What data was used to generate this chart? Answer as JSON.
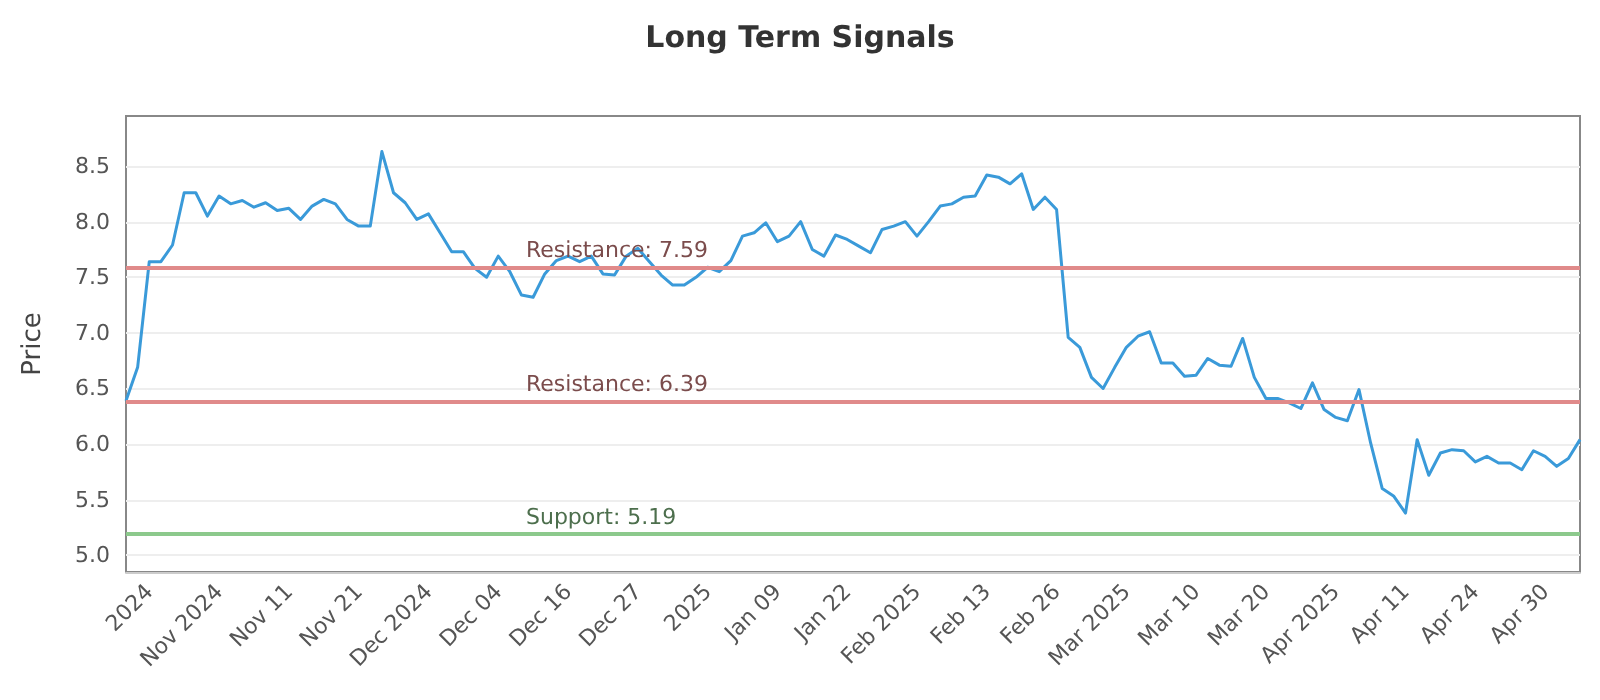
{
  "chart_data": {
    "type": "line",
    "title": "Long Term Signals",
    "ylabel": "Price",
    "categories": [
      null,
      null,
      "2024",
      null,
      null,
      null,
      null,
      null,
      "Nov 2024",
      null,
      null,
      null,
      null,
      null,
      "Nov 11",
      null,
      null,
      null,
      null,
      null,
      "Nov 21",
      null,
      null,
      null,
      null,
      null,
      "Dec 2024",
      null,
      null,
      null,
      null,
      null,
      "Dec 04",
      null,
      null,
      null,
      null,
      null,
      "Dec 16",
      null,
      null,
      null,
      null,
      null,
      "Dec 27",
      null,
      null,
      null,
      null,
      null,
      "2025",
      null,
      null,
      null,
      null,
      null,
      "Jan 09",
      null,
      null,
      null,
      null,
      null,
      "Jan 22",
      null,
      null,
      null,
      null,
      null,
      "Feb 2025",
      null,
      null,
      null,
      null,
      null,
      "Feb 13",
      null,
      null,
      null,
      null,
      null,
      "Feb 26",
      null,
      null,
      null,
      null,
      null,
      "Mar 2025",
      null,
      null,
      null,
      null,
      null,
      "Mar 10",
      null,
      null,
      null,
      null,
      null,
      "Mar 20",
      null,
      null,
      null,
      null,
      null,
      "Apr 2025",
      null,
      null,
      null,
      null,
      null,
      "Apr 11",
      null,
      null,
      null,
      null,
      null,
      "Apr 24",
      null,
      null,
      null,
      null,
      null,
      "Apr 30",
      null,
      null,
      null
    ],
    "series": [
      {
        "color": "#3a9ad9",
        "values": [
          6.39,
          6.69,
          7.64,
          7.64,
          7.79,
          8.26,
          8.26,
          8.05,
          8.23,
          8.16,
          8.19,
          8.13,
          8.17,
          8.1,
          8.12,
          8.02,
          8.14,
          8.2,
          8.16,
          8.02,
          7.96,
          7.96,
          8.63,
          8.26,
          8.17,
          8.02,
          8.07,
          7.9,
          7.73,
          7.73,
          7.58,
          7.5,
          7.69,
          7.55,
          7.34,
          7.32,
          7.53,
          7.65,
          7.69,
          7.64,
          7.69,
          7.53,
          7.52,
          7.69,
          7.76,
          7.64,
          7.52,
          7.43,
          7.43,
          7.5,
          7.59,
          7.55,
          7.65,
          7.87,
          7.9,
          7.99,
          7.82,
          7.87,
          8.0,
          7.75,
          7.69,
          7.88,
          7.84,
          7.78,
          7.72,
          7.93,
          7.96,
          8.0,
          7.87,
          8.0,
          8.14,
          8.16,
          8.22,
          8.23,
          8.42,
          8.4,
          8.34,
          8.43,
          8.11,
          8.22,
          8.11,
          6.96,
          6.87,
          6.6,
          6.5,
          6.69,
          6.87,
          6.97,
          7.01,
          6.73,
          6.73,
          6.61,
          6.62,
          6.77,
          6.71,
          6.7,
          6.95,
          6.6,
          6.41,
          6.41,
          6.37,
          6.32,
          6.55,
          6.31,
          6.24,
          6.21,
          6.49,
          6.01,
          5.6,
          5.53,
          5.38,
          6.04,
          5.72,
          5.92,
          5.95,
          5.94,
          5.84,
          5.89,
          5.83,
          5.83,
          5.77,
          5.94,
          5.89,
          5.8,
          5.87,
          6.04
        ]
      }
    ],
    "ylim": [
      4.85,
      8.95
    ],
    "yticks": [
      {
        "value": 5,
        "label": "5.0"
      },
      {
        "value": 5.5,
        "label": "5.5"
      },
      {
        "value": 6,
        "label": "6.0"
      },
      {
        "value": 6.5,
        "label": "6.5"
      },
      {
        "value": 7,
        "label": "7.0"
      },
      {
        "value": 7.5,
        "label": "7.5"
      },
      {
        "value": 8,
        "label": "8.0"
      },
      {
        "value": 8.5,
        "label": "8.5"
      }
    ],
    "ref_lines": [
      {
        "axis": "y",
        "value": 7.59,
        "label": "Resistance: 7.59",
        "color": "#e08a8a"
      },
      {
        "axis": "y",
        "value": 6.39,
        "label": "Resistance: 6.39",
        "color": "#e08a8a"
      },
      {
        "axis": "y",
        "value": 5.19,
        "label": "Support: 5.19",
        "color": "#8cc98c"
      }
    ],
    "grid": "y",
    "marker": "none",
    "line_style": "solid"
  }
}
